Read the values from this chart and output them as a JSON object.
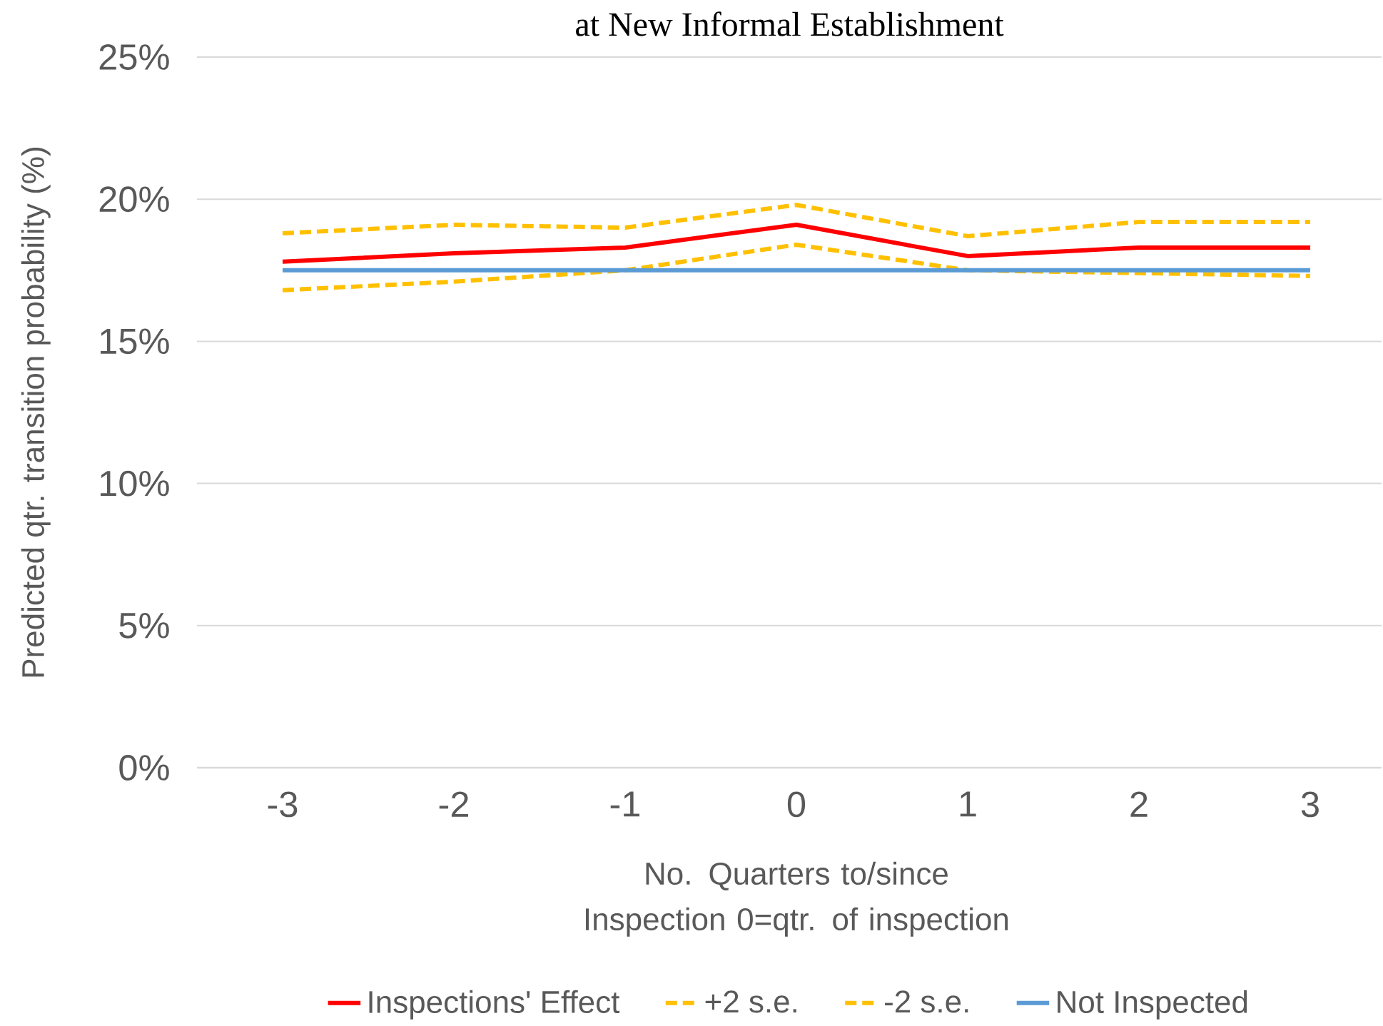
{
  "chart_data": {
    "type": "line",
    "title": "at New Informal Establishment",
    "xlabel": "No. Quarters to/since Inspection 0=qtr. of inspection",
    "ylabel": "Predicted qtr. transition probability (%)",
    "categories": [
      "-3",
      "-2",
      "-1",
      "0",
      "1",
      "2",
      "3"
    ],
    "series": [
      {
        "name": "Inspections' Effect",
        "color": "#ff0000",
        "line_style": "solid",
        "values": [
          17.8,
          18.1,
          18.3,
          19.1,
          18.0,
          18.3,
          18.3
        ]
      },
      {
        "name": "+2 s.e.",
        "color": "#ffc000",
        "line_style": "dashed",
        "values": [
          18.8,
          19.1,
          19.0,
          19.8,
          18.7,
          19.2,
          19.2
        ]
      },
      {
        "name": "-2 s.e.",
        "color": "#ffc000",
        "line_style": "dashed",
        "values": [
          16.8,
          17.1,
          17.5,
          18.4,
          17.5,
          17.4,
          17.3
        ]
      },
      {
        "name": "Not Inspected",
        "color": "#5b9bd5",
        "line_style": "solid",
        "values": [
          17.5,
          17.5,
          17.5,
          17.5,
          17.5,
          17.5,
          17.5
        ]
      }
    ],
    "ylim": [
      0,
      25
    ],
    "yticks": [
      {
        "value": 0,
        "label": "0%"
      },
      {
        "value": 5,
        "label": "5%"
      },
      {
        "value": 10,
        "label": "10%"
      },
      {
        "value": 15,
        "label": "15%"
      },
      {
        "value": 20,
        "label": "20%"
      },
      {
        "value": 25,
        "label": "25%"
      }
    ],
    "grid": "y",
    "legend": "bottom"
  }
}
